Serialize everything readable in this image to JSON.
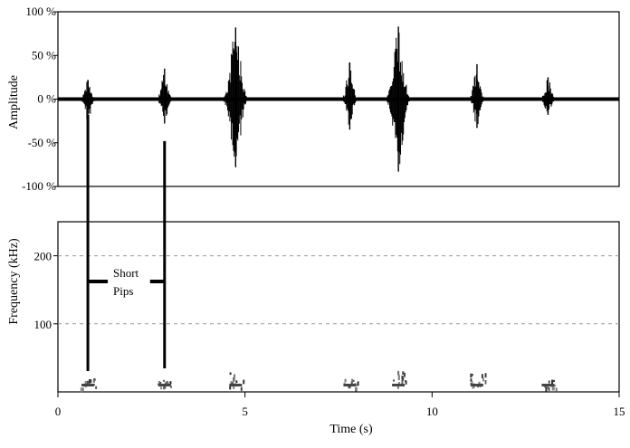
{
  "chart_data": [
    {
      "type": "line",
      "panel": "waveform",
      "ylabel": "Amplitude",
      "yticks": [
        "100 %",
        "50 %",
        "0 %",
        "-50 %",
        "-100 %"
      ],
      "ytick_values": [
        100,
        50,
        0,
        -50,
        -100
      ],
      "ylim": [
        -100,
        100
      ],
      "xlim": [
        0,
        15
      ],
      "unit": "%",
      "bursts": [
        {
          "t": 0.8,
          "max": 22,
          "min": -25
        },
        {
          "t": 2.85,
          "max": 35,
          "min": -28
        },
        {
          "t": 4.75,
          "max": 82,
          "min": -78
        },
        {
          "t": 7.8,
          "max": 42,
          "min": -35
        },
        {
          "t": 9.1,
          "max": 83,
          "min": -83
        },
        {
          "t": 11.2,
          "max": 40,
          "min": -33
        },
        {
          "t": 13.1,
          "max": 25,
          "min": -18
        }
      ]
    },
    {
      "type": "heatmap",
      "panel": "spectrogram",
      "xlabel": "Time (s)",
      "ylabel": "Frequency (kHz)",
      "xticks": [
        "0",
        "5",
        "10",
        "15"
      ],
      "xtick_values": [
        0,
        5,
        10,
        15
      ],
      "yticks": [
        "200",
        "100"
      ],
      "ytick_values": [
        200,
        100
      ],
      "xlim": [
        0,
        15
      ],
      "ylim": [
        0,
        250
      ],
      "grid": "dashed at 100 and 200 kHz",
      "marks": [
        {
          "t": 0.8,
          "fmax": 20
        },
        {
          "t": 2.85,
          "fmax": 18
        },
        {
          "t": 4.75,
          "fmax": 30
        },
        {
          "t": 7.8,
          "fmax": 20
        },
        {
          "t": 9.1,
          "fmax": 32
        },
        {
          "t": 11.2,
          "fmax": 28
        },
        {
          "t": 13.1,
          "fmax": 18
        }
      ]
    }
  ],
  "annotation": {
    "line1": "Short",
    "line2": "Pips",
    "times": [
      0.8,
      2.85
    ]
  }
}
